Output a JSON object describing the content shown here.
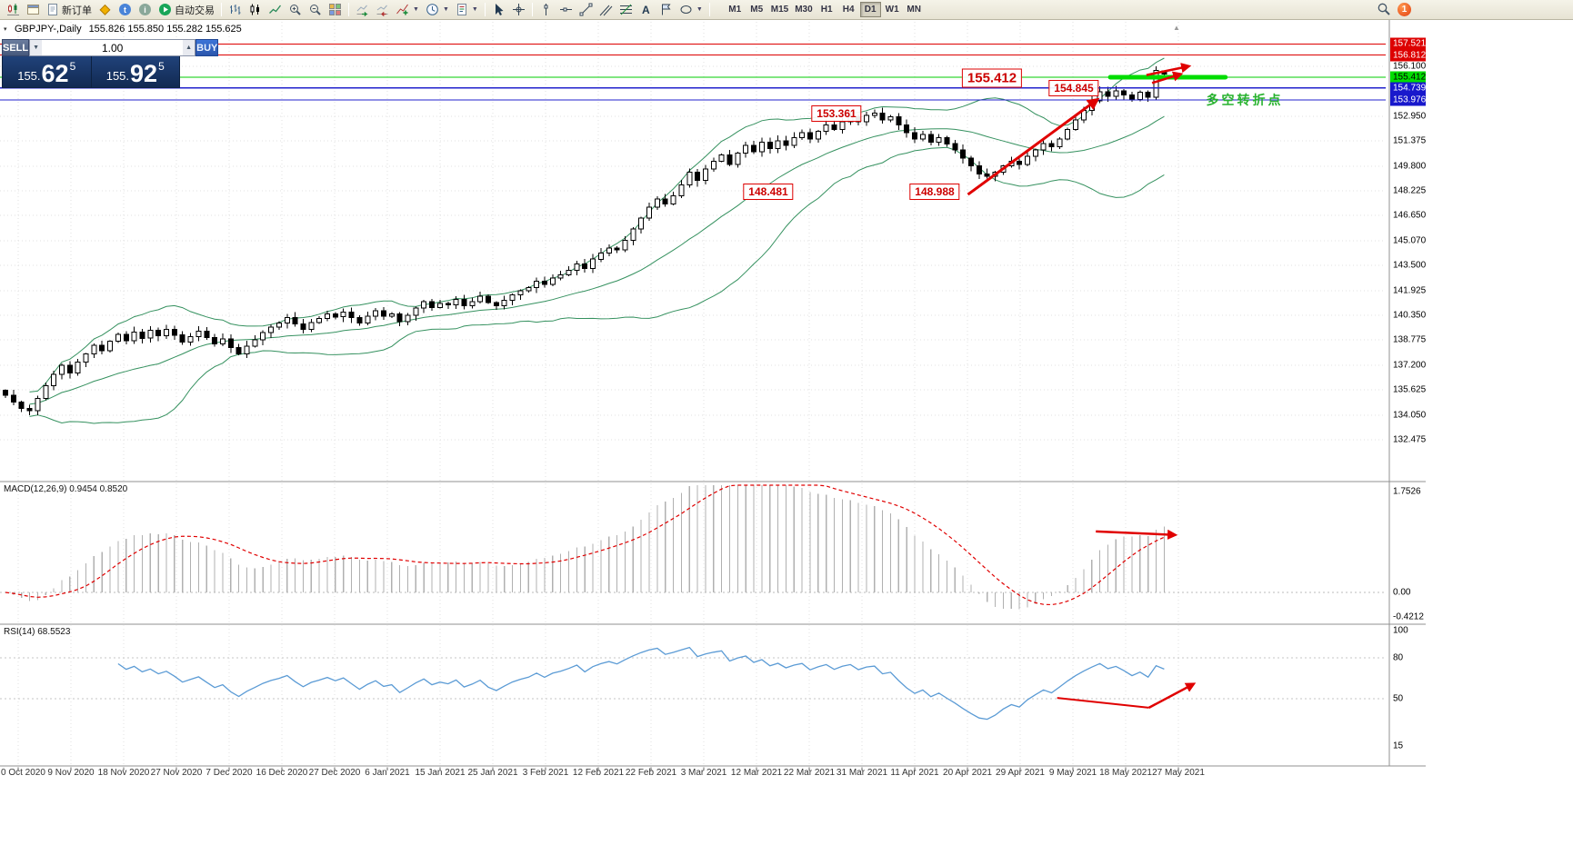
{
  "toolbar": {
    "new_order_label": "新订单",
    "autotrading_label": "自动交易",
    "timeframes": [
      "M1",
      "M5",
      "M15",
      "M30",
      "H1",
      "H4",
      "D1",
      "W1",
      "MN"
    ],
    "active_timeframe": "D1",
    "notification_badge": "1"
  },
  "chart": {
    "symbol_title": "GBPJPY-,Daily",
    "ohlc_values": "155.826 155.850 155.282 155.625"
  },
  "trade_panel": {
    "sell_label": "SELL",
    "buy_label": "BUY",
    "volume": "1.00",
    "sell_price": {
      "prefix": "155.",
      "big": "62",
      "sup": "5"
    },
    "buy_price": {
      "prefix": "155.",
      "big": "92",
      "sup": "5"
    }
  },
  "price_scale": {
    "marked": [
      {
        "value": "157.521",
        "type": "red"
      },
      {
        "value": "156.812",
        "type": "red"
      },
      {
        "value": "155.412",
        "type": "green"
      },
      {
        "value": "154.739",
        "type": "blue"
      },
      {
        "value": "153.976",
        "type": "blue"
      }
    ],
    "ticks": [
      "156.100",
      "152.950",
      "151.375",
      "149.800",
      "148.225",
      "146.650",
      "145.070",
      "143.500",
      "141.925",
      "140.350",
      "138.775",
      "137.200",
      "135.625",
      "134.050",
      "132.475"
    ]
  },
  "macd": {
    "label": "MACD(12,26,9) 0.9454 0.8520",
    "scale": [
      "1.7526",
      "0.00",
      "-0.4212"
    ]
  },
  "rsi": {
    "label": "RSI(14) 68.5523",
    "scale": [
      "100",
      "80",
      "50",
      "15"
    ]
  },
  "time_axis": [
    "0 Oct 2020",
    "9 Nov 2020",
    "18 Nov 2020",
    "27 Nov 2020",
    "7 Dec 2020",
    "16 Dec 2020",
    "27 Dec 2020",
    "6 Jan 2021",
    "15 Jan 2021",
    "25 Jan 2021",
    "3 Feb 2021",
    "12 Feb 2021",
    "22 Feb 2021",
    "3 Mar 2021",
    "12 Mar 2021",
    "22 Mar 2021",
    "31 Mar 2021",
    "11 Apr 2021",
    "20 Apr 2021",
    "29 Apr 2021",
    "9 May 2021",
    "18 May 2021",
    "27 May 2021"
  ],
  "colors": {
    "bollinger": "#35915f",
    "rsi_line": "#5b9bd5",
    "macd_signal": "#e00000",
    "histogram": "#b0b0b0",
    "bull_candle": "#ffffff",
    "bear_candle": "#000000",
    "level_green": "#00dd00",
    "arrow_red": "#e00000",
    "scale_red": "#dd0000",
    "scale_green": "#00dd00",
    "scale_blue": "#1818cc",
    "annotation_red": "#cc0000",
    "annotation_green": "#27b22e",
    "toolbar_bg": "#ece9d8",
    "panel_navy": "#16325c"
  },
  "chart_data": {
    "type": "candlestick",
    "symbol": "GBPJPY",
    "timeframe": "Daily",
    "visible_price_range": [
      130.0,
      159.0
    ],
    "candles": {
      "first_open": 135.6,
      "closes": [
        135.3,
        134.85,
        134.45,
        134.3,
        135.1,
        135.9,
        136.6,
        137.2,
        136.7,
        137.4,
        137.9,
        138.45,
        138.1,
        138.7,
        139.15,
        138.75,
        139.3,
        138.9,
        139.4,
        139.05,
        139.45,
        139.1,
        138.65,
        139.0,
        139.35,
        138.95,
        138.55,
        138.85,
        138.3,
        137.9,
        138.4,
        138.8,
        139.25,
        139.6,
        139.85,
        140.2,
        139.8,
        139.45,
        139.9,
        140.15,
        140.45,
        140.25,
        140.55,
        140.2,
        139.85,
        140.3,
        140.65,
        140.3,
        140.45,
        139.95,
        140.35,
        140.8,
        141.2,
        140.85,
        141.1,
        141.0,
        141.35,
        140.95,
        141.2,
        141.55,
        141.15,
        140.95,
        141.3,
        141.65,
        141.9,
        142.1,
        142.5,
        142.3,
        142.7,
        142.9,
        143.2,
        143.6,
        143.3,
        143.9,
        144.3,
        144.6,
        144.5,
        145.1,
        145.8,
        146.5,
        147.2,
        147.7,
        147.4,
        147.9,
        148.6,
        149.4,
        148.9,
        149.6,
        150.1,
        150.5,
        149.9,
        150.6,
        151.1,
        150.7,
        151.3,
        150.9,
        151.4,
        151.1,
        151.6,
        151.9,
        151.5,
        152.0,
        152.4,
        152.1,
        152.6,
        152.9,
        152.6,
        153.0,
        153.15,
        152.7,
        152.9,
        152.4,
        151.9,
        151.5,
        151.8,
        151.3,
        151.6,
        151.2,
        150.8,
        150.3,
        149.8,
        149.3,
        149.15,
        149.4,
        149.8,
        150.1,
        149.9,
        150.4,
        150.8,
        151.2,
        151.0,
        151.5,
        152.1,
        152.7,
        153.3,
        153.9,
        154.5,
        154.2,
        154.55,
        154.3,
        154.0,
        154.45,
        154.15,
        155.85,
        155.625
      ],
      "pins": [
        {
          "i": 86,
          "low": 148.481
        },
        {
          "i": 108,
          "high": 153.361
        },
        {
          "i": 122,
          "low": 148.988
        },
        {
          "i": 136,
          "high": 154.845
        },
        {
          "i": 143,
          "high": 156.1
        },
        {
          "i": 144,
          "open": 155.826,
          "high": 155.85,
          "low": 155.282,
          "close": 155.625
        }
      ]
    },
    "bollinger": {
      "period": 20,
      "deviation": 2
    },
    "indicator_panels": [
      {
        "type": "macd",
        "params": [
          12,
          26,
          9
        ],
        "values": [
          0.9454,
          0.852
        ],
        "scale_max": 1.7526,
        "scale_min": -0.4212
      },
      {
        "type": "rsi",
        "period": 14,
        "value": 68.5523,
        "scale_labels": [
          100,
          80,
          50,
          15
        ],
        "levels": [
          80,
          50
        ]
      }
    ],
    "levels": [
      {
        "price": 157.521,
        "color": "#dd0000",
        "width": 1
      },
      {
        "price": 156.812,
        "color": "#dd0000",
        "width": 1
      },
      {
        "price": 155.412,
        "color": "#00cc00",
        "width": 1
      },
      {
        "price": 154.739,
        "color": "#2121cc",
        "width": 1.2
      },
      {
        "price": 153.976,
        "color": "#2121cc",
        "width": 1.2
      }
    ],
    "green_segment": {
      "price": 155.412,
      "from_i": 137.3,
      "to_i": 151.6
    },
    "annotations": [
      {
        "name": "price-label-155412",
        "text": "155.412",
        "i": 122.6,
        "price": 155.35,
        "kind": "red-box",
        "size": "lg"
      },
      {
        "name": "price-label-154845",
        "text": "154.845",
        "i": 132.8,
        "price": 154.72,
        "kind": "red-box"
      },
      {
        "name": "price-label-153361",
        "text": "153.361",
        "i": 103.3,
        "price": 153.1,
        "kind": "red-box"
      },
      {
        "name": "price-label-148481",
        "text": "148.481",
        "i": 94.8,
        "price": 148.16,
        "kind": "red-box"
      },
      {
        "name": "price-label-148988",
        "text": "148.988",
        "i": 115.5,
        "price": 148.16,
        "kind": "red-box"
      },
      {
        "name": "turning-point-note",
        "text": "多空转折点",
        "i": 154.0,
        "price": 153.95,
        "kind": "green-text"
      }
    ],
    "arrows": [
      {
        "name": "trend-arrow-main",
        "panel": "main",
        "from": {
          "i": 119.6,
          "p": 147.99
        },
        "to": {
          "i": 135.6,
          "p": 153.97
        },
        "w": 3
      },
      {
        "name": "breakout-arrow-1",
        "panel": "main",
        "from": {
          "i": 141.8,
          "p": 155.55
        },
        "to": {
          "i": 147.0,
          "p": 156.1
        },
        "w": 2.5
      },
      {
        "name": "breakout-arrow-2",
        "panel": "main",
        "from": {
          "i": 142.5,
          "p": 155.05
        },
        "to": {
          "i": 146.0,
          "p": 155.6
        },
        "w": 2.5
      },
      {
        "name": "macd-arrow",
        "panel": "macd",
        "from": {
          "i": 135.5,
          "v": 1.06
        },
        "to": {
          "i": 145.3,
          "v": 1.0
        },
        "w": 2.5
      },
      {
        "name": "rsi-decline-line",
        "panel": "rsi",
        "from": {
          "i": 130.7,
          "v": 50.3
        },
        "to": {
          "i": 142.1,
          "v": 43.0
        },
        "w": 2,
        "head": false
      },
      {
        "name": "rsi-arrow",
        "panel": "rsi",
        "from": {
          "i": 142.1,
          "v": 43.0
        },
        "to": {
          "i": 147.6,
          "v": 60.4
        },
        "w": 2.5
      }
    ]
  }
}
